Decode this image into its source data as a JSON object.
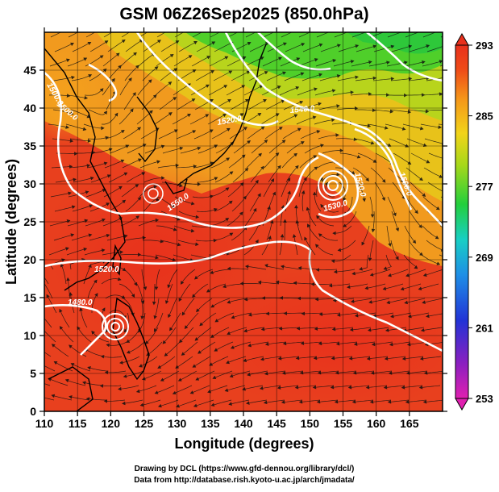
{
  "title": "GSM 06Z26Sep2025 (850.0hPa)",
  "x_axis": {
    "label": "Longitude (degrees)",
    "range": [
      110,
      170
    ],
    "ticks": [
      "110",
      "115",
      "120",
      "125",
      "130",
      "135",
      "140",
      "145",
      "150",
      "155",
      "160",
      "165"
    ],
    "tick_values": [
      110,
      115,
      120,
      125,
      130,
      135,
      140,
      145,
      150,
      155,
      160,
      165
    ]
  },
  "y_axis": {
    "label": "Latitude (degrees)",
    "range": [
      0,
      50
    ],
    "ticks": [
      "0",
      "5",
      "10",
      "15",
      "20",
      "25",
      "30",
      "35",
      "40",
      "45"
    ],
    "tick_values": [
      0,
      5,
      10,
      15,
      20,
      25,
      30,
      35,
      40,
      45
    ]
  },
  "colorbar": {
    "ticks": [
      "293",
      "285",
      "277",
      "269",
      "261",
      "253"
    ],
    "range": [
      253,
      293
    ],
    "colors": [
      "#e0209a",
      "#6a1fb8",
      "#1e2ad8",
      "#1f8fe8",
      "#18d0c8",
      "#2ecf3a",
      "#9ed61a",
      "#f0d21a",
      "#f5961a",
      "#ef4a18",
      "#e8301c"
    ]
  },
  "contours": [
    "1500.0",
    "1520.0",
    "1500.0",
    "1550.0",
    "1480.0",
    "1520.0",
    "1530.0",
    "1520.0",
    "1540.0",
    "1500.0"
  ],
  "credits": {
    "line1": "Drawing by DCL (https://www.gfd-dennou.org/library/dcl/)",
    "line2": "Data from http://database.rish.kyoto-u.ac.jp/arch/jmadata/"
  },
  "fields": [
    "temperature",
    "geopotential height contours",
    "wind streamlines",
    "coastlines"
  ]
}
